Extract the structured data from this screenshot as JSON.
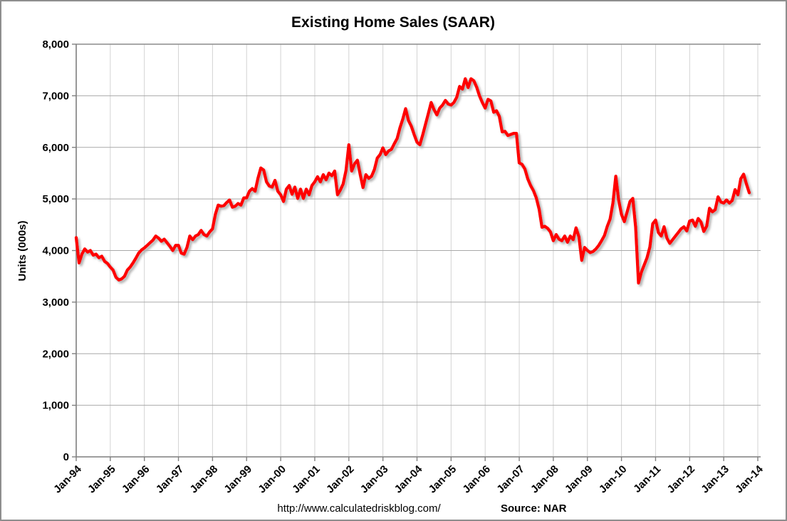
{
  "page": {
    "footer_url": "http://www.calculatedriskblog.com/",
    "footer_source": "Source: NAR"
  },
  "colors": {
    "line": "#fe0000",
    "line_shadow": "#ababab",
    "h_grid": "#a9a9a9",
    "top_grid": "#8c8c8c",
    "v_grid": "#d3d3d3",
    "axis": "#7f7f7f",
    "page_border": "#8e8e8e",
    "text": "#000000"
  },
  "chart_data": {
    "type": "line",
    "title": "Existing Home Sales (SAAR)",
    "xlabel": "",
    "ylabel": "Units (000s)",
    "ylim": [
      0,
      8000
    ],
    "ytick_step": 1000,
    "ytick_labels": [
      "0",
      "1,000",
      "2,000",
      "3,000",
      "4,000",
      "5,000",
      "6,000",
      "7,000",
      "8,000"
    ],
    "xtick_labels": [
      "Jan-94",
      "Jan-95",
      "Jan-96",
      "Jan-97",
      "Jan-98",
      "Jan-99",
      "Jan-00",
      "Jan-01",
      "Jan-02",
      "Jan-03",
      "Jan-04",
      "Jan-05",
      "Jan-06",
      "Jan-07",
      "Jan-08",
      "Jan-09",
      "Jan-10",
      "Jan-11",
      "Jan-12",
      "Jan-13",
      "Jan-14"
    ],
    "x_axis_span_months": 240,
    "grid": true,
    "legend_position": "none",
    "frequency": "monthly",
    "start_month": "Jan-1994",
    "end_month": "Oct-2013",
    "series": [
      {
        "name": "Existing Home Sales, Seasonally Adjusted Annual Rate (thousands)",
        "values": [
          4250,
          3760,
          3930,
          4030,
          3970,
          4000,
          3910,
          3930,
          3860,
          3890,
          3790,
          3750,
          3680,
          3620,
          3480,
          3430,
          3450,
          3500,
          3620,
          3680,
          3760,
          3850,
          3950,
          4010,
          4050,
          4100,
          4150,
          4200,
          4280,
          4240,
          4180,
          4220,
          4150,
          4080,
          4000,
          4100,
          4100,
          3950,
          3930,
          4060,
          4280,
          4210,
          4280,
          4310,
          4390,
          4310,
          4280,
          4360,
          4420,
          4700,
          4880,
          4860,
          4870,
          4930,
          4980,
          4840,
          4860,
          4910,
          4880,
          5020,
          5020,
          5150,
          5200,
          5150,
          5400,
          5600,
          5560,
          5330,
          5250,
          5230,
          5360,
          5150,
          5080,
          4950,
          5190,
          5260,
          5090,
          5230,
          5010,
          5190,
          5010,
          5190,
          5080,
          5260,
          5330,
          5430,
          5330,
          5470,
          5370,
          5500,
          5450,
          5540,
          5080,
          5170,
          5290,
          5550,
          6050,
          5540,
          5680,
          5750,
          5470,
          5220,
          5470,
          5400,
          5440,
          5570,
          5790,
          5860,
          5990,
          5860,
          5930,
          5960,
          6070,
          6170,
          6380,
          6550,
          6750,
          6520,
          6410,
          6250,
          6100,
          6050,
          6240,
          6450,
          6660,
          6870,
          6730,
          6630,
          6760,
          6820,
          6910,
          6840,
          6820,
          6870,
          6970,
          7180,
          7130,
          7330,
          7160,
          7330,
          7290,
          7170,
          7000,
          6870,
          6760,
          6930,
          6900,
          6680,
          6710,
          6600,
          6300,
          6310,
          6230,
          6250,
          6270,
          6270,
          5700,
          5670,
          5580,
          5390,
          5260,
          5160,
          5020,
          4800,
          4450,
          4470,
          4430,
          4360,
          4190,
          4310,
          4220,
          4190,
          4280,
          4160,
          4280,
          4210,
          4440,
          4270,
          3810,
          4060,
          4000,
          3960,
          3980,
          4030,
          4100,
          4190,
          4290,
          4470,
          4610,
          4920,
          5440,
          4980,
          4700,
          4560,
          4750,
          4950,
          5010,
          4450,
          3370,
          3580,
          3720,
          3860,
          4070,
          4520,
          4590,
          4350,
          4280,
          4460,
          4240,
          4140,
          4210,
          4280,
          4350,
          4420,
          4460,
          4380,
          4570,
          4590,
          4470,
          4620,
          4550,
          4370,
          4470,
          4820,
          4750,
          4790,
          5040,
          4940,
          4920,
          4980,
          4920,
          4970,
          5180,
          5080,
          5390,
          5480,
          5290,
          5120
        ]
      }
    ]
  }
}
